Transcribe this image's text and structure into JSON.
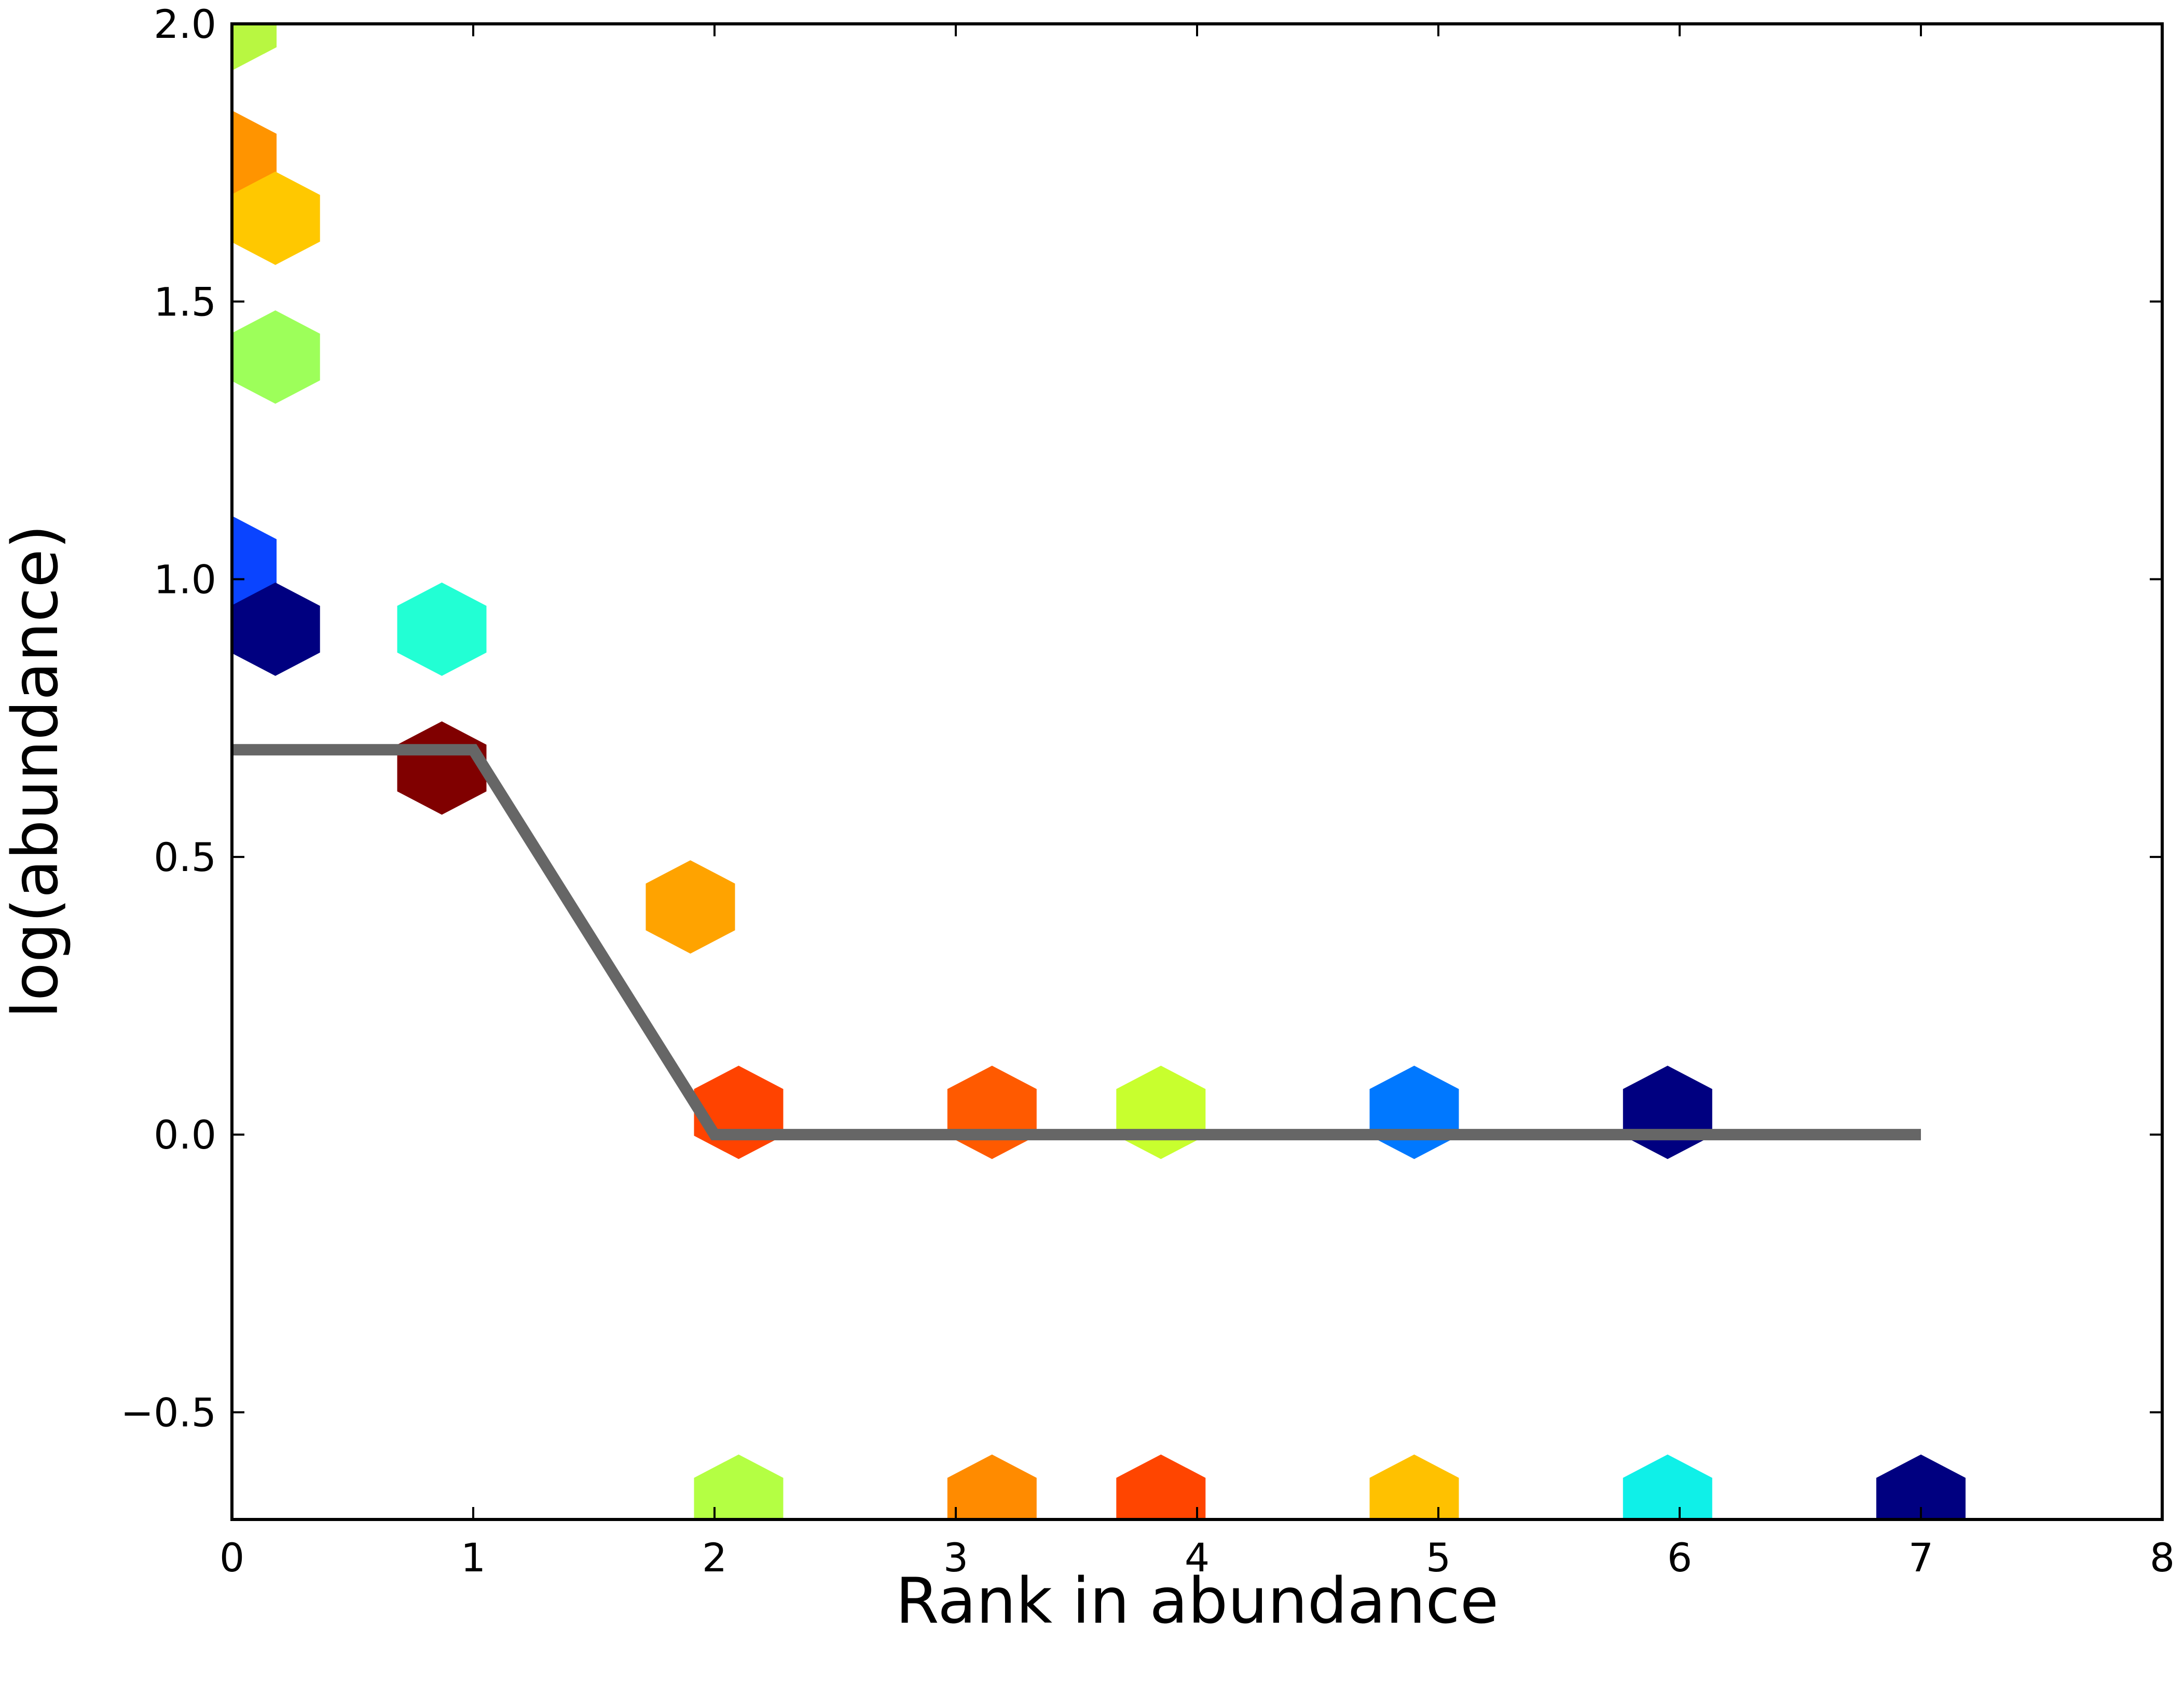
{
  "chart_data": {
    "type": "scatter",
    "title": "",
    "xlabel": "Rank in abundance",
    "ylabel": "log(abundance)",
    "xlim": [
      0,
      8
    ],
    "ylim": [
      -0.693,
      2.0
    ],
    "x_ticks": [
      0,
      1,
      2,
      3,
      4,
      5,
      6,
      7,
      8
    ],
    "x_tick_labels": [
      "0",
      "1",
      "2",
      "3",
      "4",
      "5",
      "6",
      "7",
      "8"
    ],
    "y_ticks": [
      -0.5,
      0.0,
      0.5,
      1.0,
      1.5,
      2.0
    ],
    "y_tick_labels": [
      "−0.5",
      "0.0",
      "0.5",
      "1.0",
      "1.5",
      "2.0"
    ],
    "grid": false,
    "legend": "none",
    "series": [
      {
        "marker": "hexagon",
        "points": [
          {
            "x": 0.0,
            "y": 2.0,
            "color": "#b8f741"
          },
          {
            "x": 0.0,
            "y": 1.76,
            "color": "#ff9400"
          },
          {
            "x": 0.18,
            "y": 1.65,
            "color": "#ffc800"
          },
          {
            "x": 0.18,
            "y": 1.4,
            "color": "#9dff5a"
          },
          {
            "x": 0.0,
            "y": 1.03,
            "color": "#0a44ff"
          },
          {
            "x": 0.18,
            "y": 0.91,
            "color": "#000080"
          },
          {
            "x": 0.87,
            "y": 0.91,
            "color": "#22ffd4"
          },
          {
            "x": 0.87,
            "y": 0.66,
            "color": "#800000"
          },
          {
            "x": 1.9,
            "y": 0.41,
            "color": "#ffa300"
          },
          {
            "x": 2.1,
            "y": 0.04,
            "color": "#ff4300"
          },
          {
            "x": 3.15,
            "y": 0.04,
            "color": "#ff5a00"
          },
          {
            "x": 3.85,
            "y": 0.04,
            "color": "#c8ff2e"
          },
          {
            "x": 4.9,
            "y": 0.04,
            "color": "#0078ff"
          },
          {
            "x": 5.95,
            "y": 0.04,
            "color": "#000080"
          },
          {
            "x": 2.1,
            "y": -0.66,
            "color": "#b4ff43"
          },
          {
            "x": 3.15,
            "y": -0.66,
            "color": "#ff8b00"
          },
          {
            "x": 3.85,
            "y": -0.66,
            "color": "#ff4500"
          },
          {
            "x": 4.9,
            "y": -0.66,
            "color": "#ffc100"
          },
          {
            "x": 5.95,
            "y": -0.66,
            "color": "#0ff0e8"
          },
          {
            "x": 7.0,
            "y": -0.66,
            "color": "#000080"
          }
        ]
      },
      {
        "type": "line",
        "color": "#666666",
        "x": [
          0,
          1,
          2,
          7
        ],
        "y": [
          0.693,
          0.693,
          0.0,
          0.0
        ]
      }
    ]
  }
}
